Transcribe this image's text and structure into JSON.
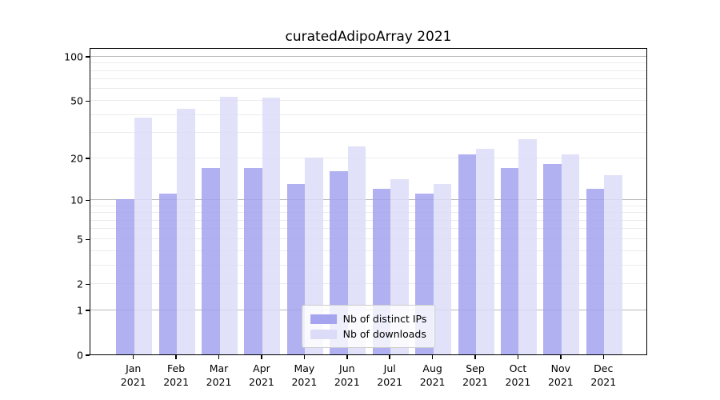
{
  "title": "curatedAdipoArray 2021",
  "chart_data": {
    "type": "bar",
    "title": "curatedAdipoArray 2021",
    "categories": [
      "Jan 2021",
      "Feb 2021",
      "Mar 2021",
      "Apr 2021",
      "May 2021",
      "Jun 2021",
      "Jul 2021",
      "Aug 2021",
      "Sep 2021",
      "Oct 2021",
      "Nov 2021",
      "Dec 2021"
    ],
    "months": [
      "Jan",
      "Feb",
      "Mar",
      "Apr",
      "May",
      "Jun",
      "Jul",
      "Aug",
      "Sep",
      "Oct",
      "Nov",
      "Dec"
    ],
    "year": "2021",
    "series": [
      {
        "name": "Nb of distinct IPs",
        "color": "#a4a4ef",
        "values": [
          10,
          11,
          17,
          17,
          13,
          16,
          12,
          11,
          21,
          17,
          18,
          12
        ]
      },
      {
        "name": "Nb of downloads",
        "color": "#dcdcf8",
        "values": [
          38,
          44,
          53,
          52,
          20,
          24,
          14,
          13,
          23,
          27,
          21,
          15
        ]
      }
    ],
    "xlabel": "",
    "ylabel": "",
    "y_scale": "log1p",
    "y_axis_max": 115,
    "y_ticks": [
      0,
      1,
      2,
      5,
      10,
      20,
      50,
      100
    ],
    "y_major_gridlines": [
      1,
      10,
      100
    ],
    "y_minor_gridlines": [
      2,
      3,
      4,
      5,
      6,
      7,
      8,
      9,
      20,
      30,
      40,
      50,
      60,
      70,
      80,
      90
    ],
    "grid": true,
    "legend_position": "lower center"
  },
  "colors": {
    "major_gridline": "#b9b9b9",
    "minor_gridline": "#ebebeb",
    "spine": "#000000",
    "text": "#000000",
    "legend_border": "#cccccc"
  }
}
